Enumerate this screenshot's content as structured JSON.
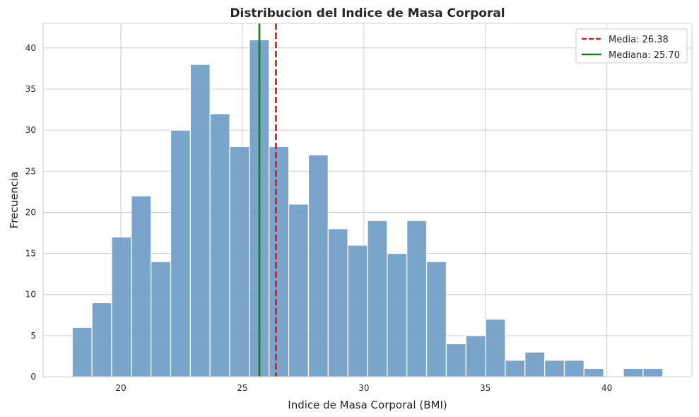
{
  "chart_data": {
    "type": "bar",
    "subtype": "histogram",
    "title": "Distribucion del Indice de Masa Corporal",
    "xlabel": "Indice de Masa Corporal (BMI)",
    "ylabel": "Frecuencia",
    "xlim": [
      16.8,
      43.5
    ],
    "ylim": [
      0,
      43
    ],
    "x_ticks": [
      20,
      25,
      30,
      35,
      40
    ],
    "y_ticks": [
      0,
      5,
      10,
      15,
      20,
      25,
      30,
      35,
      40
    ],
    "grid": true,
    "legend_position": "top-right",
    "bar_color": "#6b9ac4",
    "bins": {
      "start": 18.0,
      "width": 0.81,
      "counts": [
        6,
        9,
        17,
        22,
        14,
        30,
        38,
        32,
        28,
        41,
        28,
        21,
        27,
        18,
        16,
        19,
        15,
        19,
        14,
        4,
        5,
        7,
        2,
        3,
        2,
        2,
        1,
        0,
        1,
        1
      ]
    },
    "reference_lines": [
      {
        "label": "Media: 26.38",
        "value": 26.38,
        "color": "#e41a1c",
        "style": "dashed"
      },
      {
        "label": "Mediana: 25.70",
        "value": 25.7,
        "color": "#11811b",
        "style": "solid"
      }
    ]
  }
}
